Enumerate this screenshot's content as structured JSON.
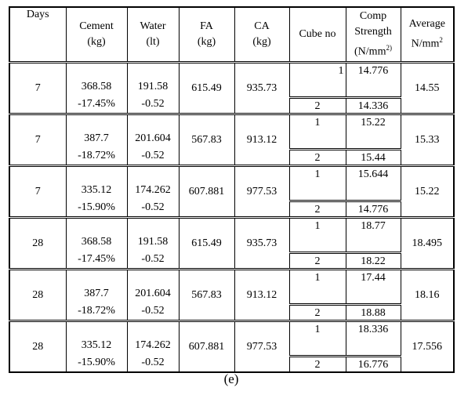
{
  "table": {
    "header": [
      [
        "Days"
      ],
      [
        "Cement",
        "(kg)"
      ],
      [
        "Water",
        "(lt)"
      ],
      [
        "FA",
        "(kg)"
      ],
      [
        "CA",
        "(kg)"
      ],
      [
        "Cube no"
      ],
      [
        "Comp",
        "Strength",
        "(N/mm",
        "2)"
      ],
      [
        "Average",
        "N/mm",
        "2"
      ]
    ],
    "groups": [
      {
        "days": "7",
        "cement": "368.58",
        "cement_pct": "-17.45%",
        "water": "191.58",
        "water_ratio": "-0.52",
        "fa": "615.49",
        "ca": "935.73",
        "cubes": [
          {
            "no": "1",
            "strength": "14.776"
          },
          {
            "no": "2",
            "strength": "14.336"
          }
        ],
        "average": "14.55"
      },
      {
        "days": "7",
        "cement": "387.7",
        "cement_pct": "-18.72%",
        "water": "201.604",
        "water_ratio": "-0.52",
        "fa": "567.83",
        "ca": "913.12",
        "cubes": [
          {
            "no": "1",
            "strength": "15.22"
          },
          {
            "no": "2",
            "strength": "15.44"
          }
        ],
        "average": "15.33"
      },
      {
        "days": "7",
        "cement": "335.12",
        "cement_pct": "-15.90%",
        "water": "174.262",
        "water_ratio": "-0.52",
        "fa": "607.881",
        "ca": "977.53",
        "cubes": [
          {
            "no": "1",
            "strength": "15.644"
          },
          {
            "no": "2",
            "strength": "14.776"
          }
        ],
        "average": "15.22"
      },
      {
        "days": "28",
        "cement": "368.58",
        "cement_pct": "-17.45%",
        "water": "191.58",
        "water_ratio": "-0.52",
        "fa": "615.49",
        "ca": "935.73",
        "cubes": [
          {
            "no": "1",
            "strength": "18.77"
          },
          {
            "no": "2",
            "strength": "18.22"
          }
        ],
        "average": "18.495"
      },
      {
        "days": "28",
        "cement": "387.7",
        "cement_pct": "-18.72%",
        "water": "201.604",
        "water_ratio": "-0.52",
        "fa": "567.83",
        "ca": "913.12",
        "cubes": [
          {
            "no": "1",
            "strength": "17.44"
          },
          {
            "no": "2",
            "strength": "18.88"
          }
        ],
        "average": "18.16"
      },
      {
        "days": "28",
        "cement": "335.12",
        "cement_pct": "-15.90%",
        "water": "174.262",
        "water_ratio": "-0.52",
        "fa": "607.881",
        "ca": "977.53",
        "cubes": [
          {
            "no": "1",
            "strength": "18.336"
          },
          {
            "no": "2",
            "strength": "16.776"
          }
        ],
        "average": "17.556"
      }
    ],
    "caption": "(e)"
  }
}
